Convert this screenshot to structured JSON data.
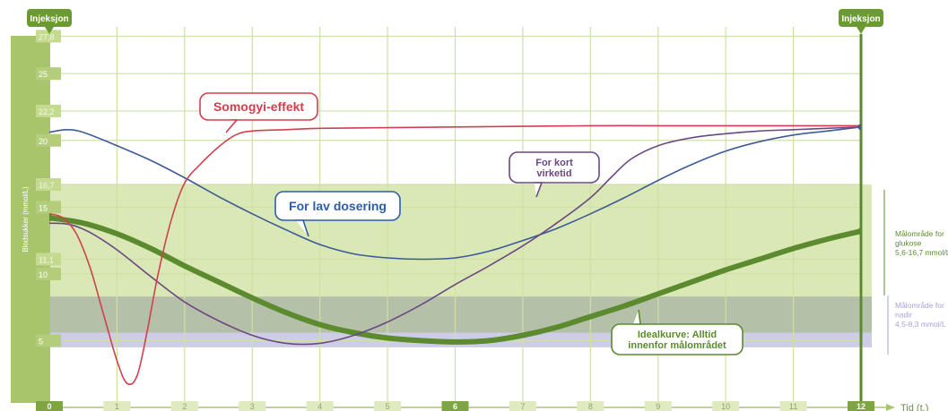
{
  "chart_data": {
    "type": "line",
    "ylabel": "Blodsukker (mmol/L)",
    "xlabel": "Tid (t.)",
    "xlim": [
      0,
      12
    ],
    "ylim": [
      0,
      28.5
    ],
    "x_ticks": [
      "0",
      "1",
      "2",
      "3",
      "4",
      "5",
      "6",
      "7",
      "8",
      "9",
      "10",
      "11",
      "12"
    ],
    "y_ticks": [
      {
        "value": 27.8,
        "label": "27,8"
      },
      {
        "value": 25,
        "label": "25"
      },
      {
        "value": 22.2,
        "label": "22,2"
      },
      {
        "value": 20,
        "label": "20"
      },
      {
        "value": 16.7,
        "label": "16,7"
      },
      {
        "value": 15,
        "label": "15"
      },
      {
        "value": 11.1,
        "label": "11,1"
      },
      {
        "value": 10,
        "label": "10"
      },
      {
        "value": 5,
        "label": "5"
      }
    ],
    "injection_markers": [
      {
        "x": 0,
        "label": "Injeksjon"
      },
      {
        "x": 12,
        "label": "Injeksjon"
      }
    ],
    "target_ranges": [
      {
        "name": "glukose",
        "from": 5.6,
        "to": 16.7,
        "color": "#d6e6ae",
        "text": [
          "Målområde for",
          "glukose",
          "5,6-16,7 mmol/L"
        ],
        "text_color": "#5e8b2c"
      },
      {
        "name": "nadir",
        "from": 4.5,
        "to": 8.3,
        "color": "#c5c4e4",
        "text": [
          "Målområde for",
          "nadir",
          "4,5-8,3 mmol/L"
        ],
        "text_color": "#a5a3d6"
      }
    ],
    "series": [
      {
        "id": "ideal",
        "color": "#5c8a2e",
        "width": 6,
        "x": [
          0,
          0.5,
          1,
          1.5,
          2,
          2.5,
          3,
          3.5,
          4,
          4.5,
          5,
          5.5,
          6,
          6.5,
          7,
          7.5,
          8,
          8.5,
          9,
          9.5,
          10,
          10.5,
          11,
          11.5,
          12
        ],
        "y": [
          14.2,
          13.8,
          13,
          11.9,
          10.6,
          9.4,
          8.2,
          7.1,
          6.2,
          5.6,
          5.2,
          5,
          4.9,
          5,
          5.4,
          6,
          6.8,
          7.6,
          8.5,
          9.4,
          10.3,
          11.1,
          11.9,
          12.6,
          13.2
        ]
      },
      {
        "id": "lav-dosering",
        "color": "#3d5a96",
        "width": 1.6,
        "x": [
          0,
          0.25,
          0.5,
          1,
          1.5,
          2,
          2.5,
          3,
          3.5,
          4,
          4.5,
          5,
          5.5,
          6,
          6.5,
          7,
          7.5,
          8,
          8.5,
          9,
          9.5,
          10,
          10.5,
          11,
          11.5,
          12
        ],
        "y": [
          20.6,
          20.8,
          20.6,
          19.6,
          18.5,
          17.2,
          15.8,
          14.5,
          13.3,
          12.2,
          11.5,
          11.2,
          11.1,
          11.2,
          11.7,
          12.5,
          13.4,
          14.5,
          15.7,
          17,
          18.2,
          19.2,
          19.9,
          20.4,
          20.7,
          21
        ]
      },
      {
        "id": "somogyi",
        "color": "#d0404d",
        "width": 1.6,
        "x": [
          0,
          0.2,
          0.4,
          0.6,
          0.8,
          1,
          1.15,
          1.3,
          1.45,
          1.6,
          1.8,
          2,
          2.25,
          2.5,
          2.75,
          3,
          3.5,
          4,
          5,
          6,
          7,
          8,
          9,
          10,
          11,
          12
        ],
        "y": [
          14.5,
          14.2,
          13,
          10.5,
          7,
          3.5,
          1.8,
          2.4,
          5.8,
          9.8,
          14,
          16.8,
          18.3,
          19.5,
          20.4,
          20.7,
          20.8,
          20.9,
          20.95,
          21,
          21.05,
          21.1,
          21.1,
          21.1,
          21.1,
          21.1
        ]
      },
      {
        "id": "kort-virketid",
        "color": "#6b4882",
        "width": 1.6,
        "x": [
          0,
          0.3,
          0.6,
          1,
          1.5,
          2,
          2.5,
          3,
          3.5,
          4,
          4.5,
          5,
          5.5,
          6,
          6.5,
          7,
          7.5,
          8,
          8.3,
          8.6,
          9,
          9.5,
          10,
          10.5,
          11,
          11.5,
          12
        ],
        "y": [
          13.8,
          13.7,
          13.1,
          11.8,
          9.8,
          7.9,
          6.5,
          5.4,
          4.8,
          4.8,
          5.4,
          6.4,
          7.7,
          9.2,
          10.6,
          12.1,
          13.8,
          15.7,
          17.2,
          18.6,
          19.6,
          20.2,
          20.5,
          20.7,
          20.8,
          20.9,
          21
        ]
      }
    ],
    "annotations": [
      {
        "id": "somogyi-label",
        "text": [
          "Somogyi-effekt"
        ],
        "color": "#d0404d",
        "textColor": "#d0404d"
      },
      {
        "id": "lav-dosering-label",
        "text": [
          "For lav dosering"
        ],
        "color": "#2d5ea8",
        "textColor": "#2d5ea8"
      },
      {
        "id": "kort-virketid-label",
        "text": [
          "For kort",
          "virketid"
        ],
        "color": "#6b4882",
        "textColor": "#6b4882"
      },
      {
        "id": "ideal-label",
        "text": [
          "Idealkurve: Alltid",
          "innenfor målområdet"
        ],
        "color": "#5c8a2e",
        "textColor": "#5c8a2e"
      }
    ]
  }
}
